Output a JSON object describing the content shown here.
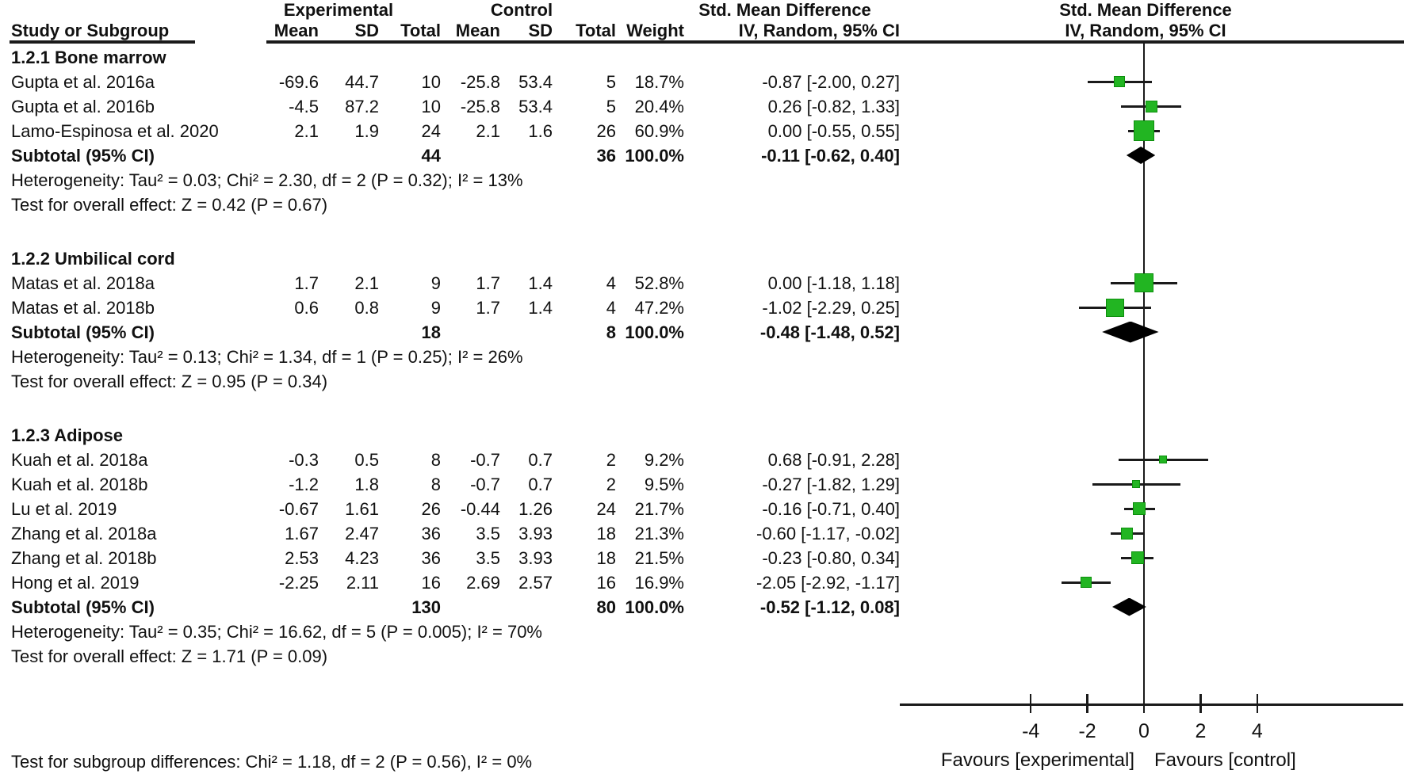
{
  "header": {
    "col_experimental": "Experimental",
    "col_control": "Control",
    "col_smd": "Std. Mean Difference",
    "study_or_subgroup": "Study or Subgroup",
    "mean": "Mean",
    "sd": "SD",
    "total": "Total",
    "weight": "Weight",
    "iv_random": "IV, Random, 95% CI",
    "right_title": "Std. Mean Difference",
    "right_subtitle": "IV, Random, 95% CI"
  },
  "chart_data": {
    "type": "forest",
    "effect_measure": "Std. Mean Difference, IV, Random, 95% CI",
    "colors": {
      "marker_green": "#22b522",
      "diamond_black": "#000000",
      "line": "#1a1a1a"
    },
    "axis": {
      "ticks": [
        -4,
        -2,
        0,
        2,
        4
      ],
      "xlim_drawn": [
        -8.6,
        9.2
      ],
      "favours_left": "Favours [experimental]",
      "favours_right": "Favours [control]"
    },
    "groups": [
      {
        "label": "1.2.1 Bone marrow",
        "studies": [
          {
            "name": "Gupta et al. 2016a",
            "exp_mean": "-69.6",
            "exp_sd": "44.7",
            "exp_total": "10",
            "ctrl_mean": "-25.8",
            "ctrl_sd": "53.4",
            "ctrl_total": "5",
            "weight": "18.7%",
            "ci_text": "-0.87 [-2.00, 0.27]",
            "est": -0.87,
            "lo": -2.0,
            "hi": 0.27
          },
          {
            "name": "Gupta et al. 2016b",
            "exp_mean": "-4.5",
            "exp_sd": "87.2",
            "exp_total": "10",
            "ctrl_mean": "-25.8",
            "ctrl_sd": "53.4",
            "ctrl_total": "5",
            "weight": "20.4%",
            "ci_text": "0.26 [-0.82, 1.33]",
            "est": 0.26,
            "lo": -0.82,
            "hi": 1.33
          },
          {
            "name": "Lamo-Espinosa et al. 2020",
            "exp_mean": "2.1",
            "exp_sd": "1.9",
            "exp_total": "24",
            "ctrl_mean": "2.1",
            "ctrl_sd": "1.6",
            "ctrl_total": "26",
            "weight": "60.9%",
            "ci_text": "0.00 [-0.55, 0.55]",
            "est": 0.0,
            "lo": -0.55,
            "hi": 0.55
          }
        ],
        "subtotal": {
          "label": "Subtotal (95% CI)",
          "exp_total": "44",
          "ctrl_total": "36",
          "weight": "100.0%",
          "ci_text": "-0.11 [-0.62, 0.40]",
          "est": -0.11,
          "lo": -0.62,
          "hi": 0.4
        },
        "heterogeneity": "Heterogeneity: Tau² = 0.03; Chi² = 2.30, df = 2 (P = 0.32); I² = 13%",
        "overall_effect": "Test for overall effect: Z = 0.42 (P = 0.67)"
      },
      {
        "label": "1.2.2 Umbilical cord",
        "studies": [
          {
            "name": "Matas et al. 2018a",
            "exp_mean": "1.7",
            "exp_sd": "2.1",
            "exp_total": "9",
            "ctrl_mean": "1.7",
            "ctrl_sd": "1.4",
            "ctrl_total": "4",
            "weight": "52.8%",
            "ci_text": "0.00 [-1.18, 1.18]",
            "est": 0.0,
            "lo": -1.18,
            "hi": 1.18
          },
          {
            "name": "Matas et al. 2018b",
            "exp_mean": "0.6",
            "exp_sd": "0.8",
            "exp_total": "9",
            "ctrl_mean": "1.7",
            "ctrl_sd": "1.4",
            "ctrl_total": "4",
            "weight": "47.2%",
            "ci_text": "-1.02 [-2.29, 0.25]",
            "est": -1.02,
            "lo": -2.29,
            "hi": 0.25
          }
        ],
        "subtotal": {
          "label": "Subtotal (95% CI)",
          "exp_total": "18",
          "ctrl_total": "8",
          "weight": "100.0%",
          "ci_text": "-0.48 [-1.48, 0.52]",
          "est": -0.48,
          "lo": -1.48,
          "hi": 0.52
        },
        "heterogeneity": "Heterogeneity: Tau² = 0.13; Chi² = 1.34, df = 1 (P = 0.25); I² = 26%",
        "overall_effect": "Test for overall effect: Z = 0.95 (P = 0.34)"
      },
      {
        "label": "1.2.3 Adipose",
        "studies": [
          {
            "name": "Kuah et al. 2018a",
            "exp_mean": "-0.3",
            "exp_sd": "0.5",
            "exp_total": "8",
            "ctrl_mean": "-0.7",
            "ctrl_sd": "0.7",
            "ctrl_total": "2",
            "weight": "9.2%",
            "ci_text": "0.68 [-0.91, 2.28]",
            "est": 0.68,
            "lo": -0.91,
            "hi": 2.28
          },
          {
            "name": "Kuah et al. 2018b",
            "exp_mean": "-1.2",
            "exp_sd": "1.8",
            "exp_total": "8",
            "ctrl_mean": "-0.7",
            "ctrl_sd": "0.7",
            "ctrl_total": "2",
            "weight": "9.5%",
            "ci_text": "-0.27 [-1.82, 1.29]",
            "est": -0.27,
            "lo": -1.82,
            "hi": 1.29
          },
          {
            "name": "Lu et al. 2019",
            "exp_mean": "-0.67",
            "exp_sd": "1.61",
            "exp_total": "26",
            "ctrl_mean": "-0.44",
            "ctrl_sd": "1.26",
            "ctrl_total": "24",
            "weight": "21.7%",
            "ci_text": "-0.16 [-0.71, 0.40]",
            "est": -0.16,
            "lo": -0.71,
            "hi": 0.4
          },
          {
            "name": "Zhang et al. 2018a",
            "exp_mean": "1.67",
            "exp_sd": "2.47",
            "exp_total": "36",
            "ctrl_mean": "3.5",
            "ctrl_sd": "3.93",
            "ctrl_total": "18",
            "weight": "21.3%",
            "ci_text": "-0.60 [-1.17, -0.02]",
            "est": -0.6,
            "lo": -1.17,
            "hi": -0.02
          },
          {
            "name": "Zhang et al. 2018b",
            "exp_mean": "2.53",
            "exp_sd": "4.23",
            "exp_total": "36",
            "ctrl_mean": "3.5",
            "ctrl_sd": "3.93",
            "ctrl_total": "18",
            "weight": "21.5%",
            "ci_text": "-0.23 [-0.80, 0.34]",
            "est": -0.23,
            "lo": -0.8,
            "hi": 0.34
          },
          {
            "name": "Hong et al. 2019",
            "exp_mean": "-2.25",
            "exp_sd": "2.11",
            "exp_total": "16",
            "ctrl_mean": "2.69",
            "ctrl_sd": "2.57",
            "ctrl_total": "16",
            "weight": "16.9%",
            "ci_text": "-2.05 [-2.92, -1.17]",
            "est": -2.05,
            "lo": -2.92,
            "hi": -1.17
          }
        ],
        "subtotal": {
          "label": "Subtotal (95% CI)",
          "exp_total": "130",
          "ctrl_total": "80",
          "weight": "100.0%",
          "ci_text": "-0.52 [-1.12, 0.08]",
          "est": -0.52,
          "lo": -1.12,
          "hi": 0.08
        },
        "heterogeneity": "Heterogeneity: Tau² = 0.35; Chi² = 16.62, df = 5 (P = 0.005); I² = 70%",
        "overall_effect": "Test for overall effect: Z = 1.71 (P = 0.09)"
      }
    ],
    "footer": "Test for subgroup differences: Chi² = 1.18, df = 2 (P = 0.56), I² = 0%"
  }
}
